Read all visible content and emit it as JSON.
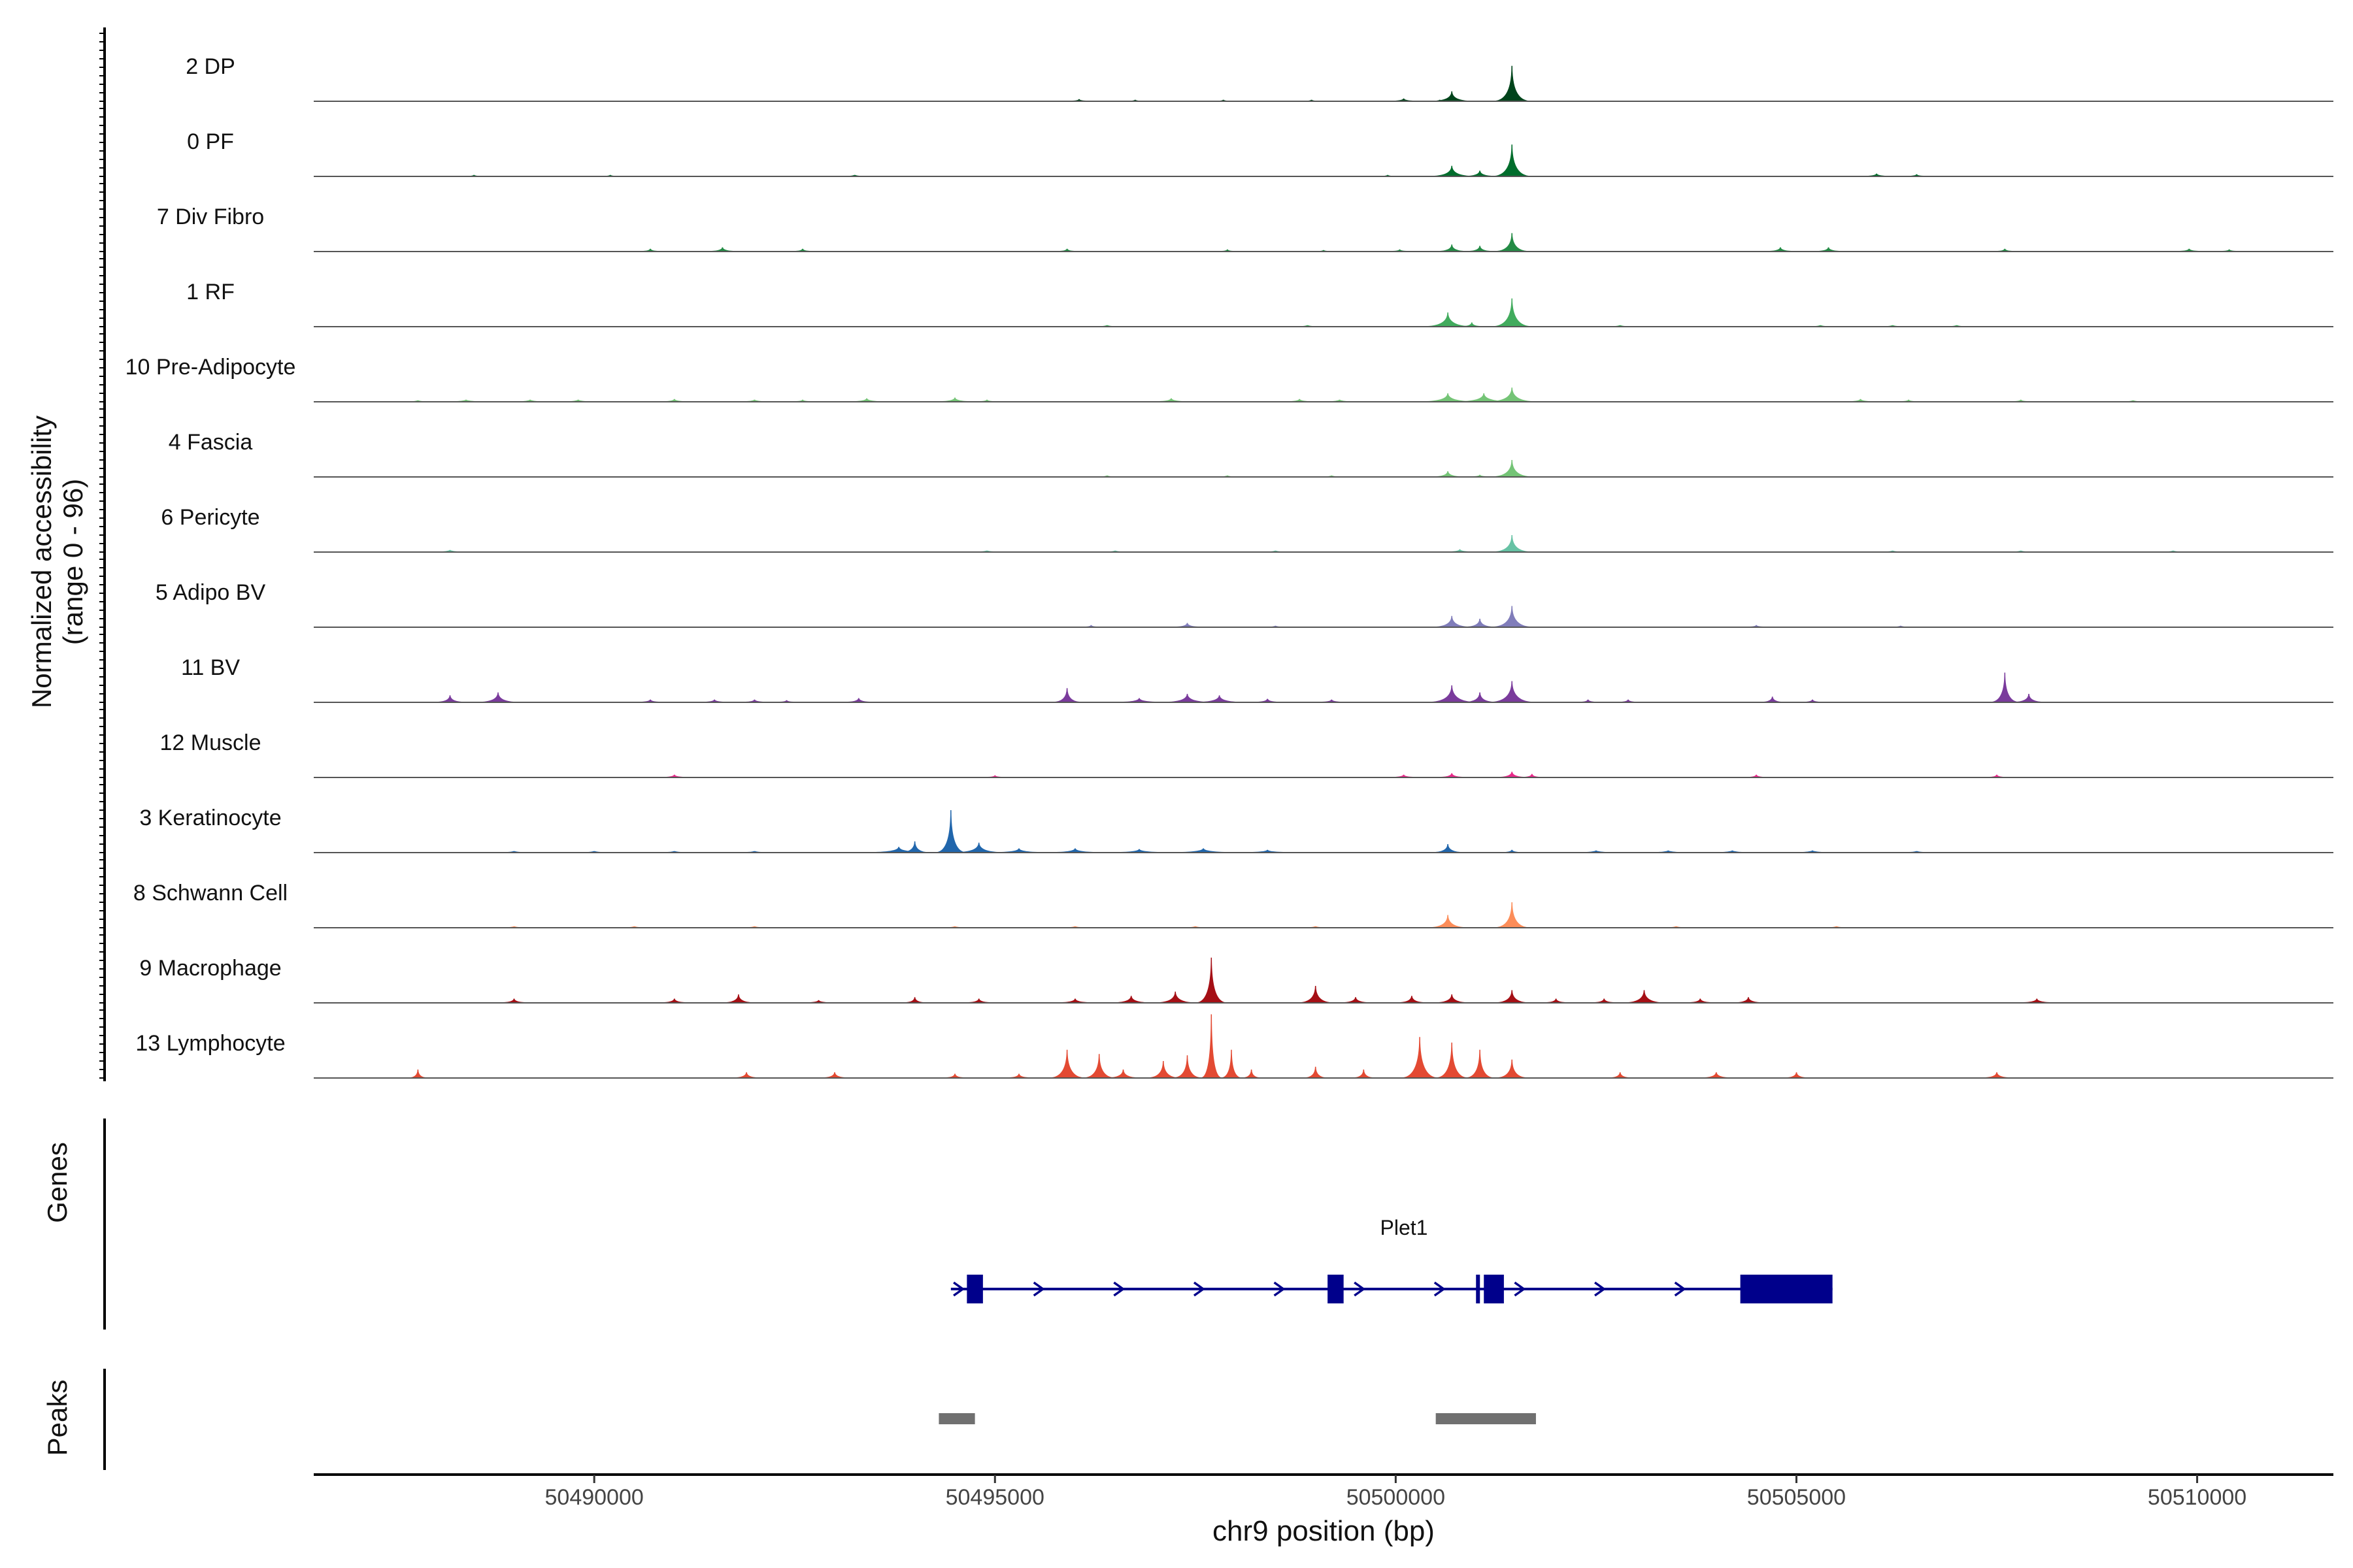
{
  "chart_data": {
    "type": "area",
    "title": "",
    "xlabel": "chr9 position (bp)",
    "ylabel": "Normalized accessibility",
    "ylabel_range": "(range 0 - 96)",
    "ylim": [
      0,
      96
    ],
    "xlim": [
      50486500,
      50511700
    ],
    "x_ticks": [
      50490000,
      50495000,
      50500000,
      50505000,
      50510000
    ],
    "x_tick_labels": [
      "50490000",
      "50495000",
      "50500000",
      "50505000",
      "50510000"
    ],
    "tracks": [
      {
        "name": "2 DP",
        "color": "#00441b",
        "peaks": [
          [
            50500100,
            4,
            200
          ],
          [
            50500700,
            14,
            250
          ],
          [
            50501450,
            50,
            230
          ],
          [
            50496050,
            3,
            150
          ],
          [
            50496750,
            2,
            100
          ],
          [
            50497850,
            2,
            100
          ],
          [
            50498950,
            2,
            100
          ],
          [
            50500550,
            2,
            100
          ]
        ]
      },
      {
        "name": "0 PF",
        "color": "#006d2c",
        "peaks": [
          [
            50493250,
            2,
            150
          ],
          [
            50500700,
            15,
            280
          ],
          [
            50501050,
            8,
            200
          ],
          [
            50501450,
            45,
            240
          ],
          [
            50488500,
            2,
            100
          ],
          [
            50490200,
            2,
            100
          ],
          [
            50499900,
            2,
            100
          ],
          [
            50506000,
            4,
            200
          ],
          [
            50506500,
            3,
            150
          ]
        ]
      },
      {
        "name": "7 Div Fibro",
        "color": "#238b45",
        "peaks": [
          [
            50490700,
            4,
            150
          ],
          [
            50491600,
            6,
            200
          ],
          [
            50492600,
            4,
            150
          ],
          [
            50495900,
            4,
            150
          ],
          [
            50497900,
            3,
            120
          ],
          [
            50499100,
            2,
            100
          ],
          [
            50500050,
            3,
            150
          ],
          [
            50500700,
            10,
            200
          ],
          [
            50501050,
            8,
            180
          ],
          [
            50501450,
            26,
            220
          ],
          [
            50504800,
            6,
            200
          ],
          [
            50505400,
            6,
            200
          ],
          [
            50507600,
            4,
            150
          ],
          [
            50509900,
            4,
            200
          ],
          [
            50510400,
            3,
            150
          ]
        ]
      },
      {
        "name": "1 RF",
        "color": "#41ab5d",
        "peaks": [
          [
            50496400,
            2,
            150
          ],
          [
            50498900,
            2,
            150
          ],
          [
            50500650,
            20,
            300
          ],
          [
            50501450,
            40,
            250
          ],
          [
            50500950,
            6,
            150
          ],
          [
            50502800,
            2,
            150
          ],
          [
            50505300,
            2,
            150
          ],
          [
            50506200,
            2,
            150
          ],
          [
            50507000,
            2,
            150
          ]
        ]
      },
      {
        "name": "10 Pre-Adipocyte",
        "color": "#74c476",
        "peaks": [
          [
            50487800,
            2,
            150
          ],
          [
            50488400,
            3,
            250
          ],
          [
            50489200,
            3,
            200
          ],
          [
            50489800,
            3,
            200
          ],
          [
            50491000,
            4,
            200
          ],
          [
            50492000,
            3,
            200
          ],
          [
            50492600,
            3,
            150
          ],
          [
            50493400,
            5,
            250
          ],
          [
            50494500,
            6,
            250
          ],
          [
            50494900,
            3,
            150
          ],
          [
            50497200,
            5,
            250
          ],
          [
            50498800,
            4,
            200
          ],
          [
            50499300,
            3,
            200
          ],
          [
            50500650,
            12,
            350
          ],
          [
            50501100,
            12,
            350
          ],
          [
            50501450,
            20,
            300
          ],
          [
            50505800,
            4,
            200
          ],
          [
            50506400,
            3,
            150
          ],
          [
            50507800,
            3,
            150
          ],
          [
            50509200,
            2,
            150
          ]
        ]
      },
      {
        "name": "4 Fascia",
        "color": "#74c476",
        "peaks": [
          [
            50500650,
            8,
            200
          ],
          [
            50501450,
            24,
            260
          ],
          [
            50496400,
            2,
            120
          ],
          [
            50497900,
            2,
            120
          ],
          [
            50499200,
            2,
            120
          ],
          [
            50501050,
            3,
            150
          ]
        ]
      },
      {
        "name": "6 Pericyte",
        "color": "#66c2a4",
        "peaks": [
          [
            50488200,
            3,
            200
          ],
          [
            50494900,
            2,
            200
          ],
          [
            50496500,
            2,
            150
          ],
          [
            50498500,
            2,
            150
          ],
          [
            50500800,
            4,
            200
          ],
          [
            50501450,
            24,
            250
          ],
          [
            50506200,
            2,
            150
          ],
          [
            50507800,
            2,
            150
          ],
          [
            50509700,
            2,
            150
          ]
        ]
      },
      {
        "name": "5 Adipo BV",
        "color": "#807dba",
        "peaks": [
          [
            50497400,
            6,
            200
          ],
          [
            50500700,
            16,
            250
          ],
          [
            50501050,
            12,
            200
          ],
          [
            50501450,
            30,
            260
          ],
          [
            50496200,
            3,
            120
          ],
          [
            50498500,
            2,
            120
          ],
          [
            50504500,
            3,
            150
          ],
          [
            50506300,
            2,
            120
          ]
        ]
      },
      {
        "name": "11 BV",
        "color": "#7a3b9c",
        "peaks": [
          [
            50488200,
            10,
            200
          ],
          [
            50488800,
            14,
            250
          ],
          [
            50490700,
            4,
            200
          ],
          [
            50491500,
            4,
            200
          ],
          [
            50492000,
            4,
            200
          ],
          [
            50492400,
            3,
            150
          ],
          [
            50493300,
            6,
            200
          ],
          [
            50495900,
            20,
            180
          ],
          [
            50496800,
            6,
            300
          ],
          [
            50497400,
            12,
            300
          ],
          [
            50497800,
            10,
            300
          ],
          [
            50498400,
            5,
            200
          ],
          [
            50499200,
            4,
            200
          ],
          [
            50500700,
            24,
            300
          ],
          [
            50501050,
            14,
            200
          ],
          [
            50501450,
            30,
            280
          ],
          [
            50502400,
            4,
            150
          ],
          [
            50502900,
            4,
            150
          ],
          [
            50504700,
            8,
            150
          ],
          [
            50505200,
            4,
            150
          ],
          [
            50507600,
            42,
            180
          ],
          [
            50507900,
            12,
            200
          ]
        ]
      },
      {
        "name": "12 Muscle",
        "color": "#e7298a",
        "peaks": [
          [
            50491000,
            4,
            200
          ],
          [
            50495000,
            3,
            150
          ],
          [
            50500100,
            4,
            200
          ],
          [
            50500700,
            6,
            200
          ],
          [
            50501450,
            8,
            200
          ],
          [
            50501700,
            5,
            150
          ],
          [
            50504500,
            4,
            150
          ],
          [
            50507500,
            4,
            150
          ]
        ]
      },
      {
        "name": "3 Keratinocyte",
        "color": "#2166ac",
        "peaks": [
          [
            50493800,
            8,
            400
          ],
          [
            50494000,
            16,
            180
          ],
          [
            50494450,
            60,
            190
          ],
          [
            50494800,
            14,
            300
          ],
          [
            50495300,
            6,
            350
          ],
          [
            50496000,
            6,
            350
          ],
          [
            50496800,
            5,
            350
          ],
          [
            50497600,
            6,
            400
          ],
          [
            50498400,
            4,
            300
          ],
          [
            50500650,
            12,
            200
          ],
          [
            50501450,
            4,
            150
          ],
          [
            50489000,
            2,
            200
          ],
          [
            50490000,
            2,
            200
          ],
          [
            50491000,
            2,
            200
          ],
          [
            50492000,
            2,
            200
          ],
          [
            50502500,
            3,
            250
          ],
          [
            50503400,
            3,
            250
          ],
          [
            50504200,
            3,
            250
          ],
          [
            50505200,
            3,
            250
          ],
          [
            50506500,
            2,
            200
          ]
        ]
      },
      {
        "name": "8 Schwann Cell",
        "color": "#fc8d59",
        "peaks": [
          [
            50500650,
            18,
            250
          ],
          [
            50501450,
            36,
            220
          ],
          [
            50489000,
            2,
            150
          ],
          [
            50490500,
            2,
            150
          ],
          [
            50492000,
            2,
            150
          ],
          [
            50494500,
            2,
            150
          ],
          [
            50496000,
            2,
            150
          ],
          [
            50497500,
            2,
            150
          ],
          [
            50499000,
            2,
            150
          ],
          [
            50503500,
            2,
            150
          ],
          [
            50505500,
            2,
            150
          ]
        ]
      },
      {
        "name": "9 Macrophage",
        "color": "#a50f15",
        "peaks": [
          [
            50489000,
            6,
            200
          ],
          [
            50491000,
            6,
            200
          ],
          [
            50491800,
            12,
            200
          ],
          [
            50492800,
            4,
            200
          ],
          [
            50494000,
            8,
            150
          ],
          [
            50494800,
            6,
            200
          ],
          [
            50496000,
            6,
            250
          ],
          [
            50496700,
            10,
            250
          ],
          [
            50497250,
            16,
            250
          ],
          [
            50497700,
            64,
            190
          ],
          [
            50499000,
            24,
            220
          ],
          [
            50499500,
            8,
            200
          ],
          [
            50500200,
            10,
            200
          ],
          [
            50500700,
            12,
            220
          ],
          [
            50501450,
            18,
            220
          ],
          [
            50502000,
            6,
            180
          ],
          [
            50502600,
            6,
            180
          ],
          [
            50503100,
            18,
            250
          ],
          [
            50503800,
            6,
            200
          ],
          [
            50504400,
            8,
            200
          ],
          [
            50508000,
            6,
            250
          ]
        ]
      },
      {
        "name": "13 Lymphocyte",
        "color": "#e34a33",
        "peaks": [
          [
            50487800,
            12,
            120
          ],
          [
            50491900,
            8,
            180
          ],
          [
            50493000,
            8,
            180
          ],
          [
            50494500,
            6,
            160
          ],
          [
            50495300,
            6,
            180
          ],
          [
            50495900,
            40,
            220
          ],
          [
            50496300,
            34,
            200
          ],
          [
            50496600,
            12,
            200
          ],
          [
            50497100,
            24,
            200
          ],
          [
            50497400,
            32,
            180
          ],
          [
            50497700,
            90,
            130
          ],
          [
            50497950,
            40,
            130
          ],
          [
            50498200,
            12,
            120
          ],
          [
            50499000,
            16,
            150
          ],
          [
            50499600,
            12,
            140
          ],
          [
            50500300,
            58,
            230
          ],
          [
            50500700,
            50,
            200
          ],
          [
            50501050,
            40,
            180
          ],
          [
            50501450,
            26,
            200
          ],
          [
            50502800,
            8,
            150
          ],
          [
            50504000,
            8,
            200
          ],
          [
            50505000,
            8,
            160
          ],
          [
            50507500,
            8,
            200
          ]
        ]
      }
    ],
    "gene": {
      "name": "Plet1",
      "start": 50494450,
      "end": 50505450,
      "strand": "+",
      "exons": [
        [
          50494650,
          50494850
        ],
        [
          50499150,
          50499350
        ],
        [
          50501100,
          50501350
        ],
        [
          50504300,
          50505450
        ]
      ],
      "marker": 50501100
    },
    "peak_regions": [
      [
        50494300,
        50494750
      ],
      [
        50500500,
        50501750
      ]
    ],
    "panel_labels": {
      "genes": "Genes",
      "peaks": "Peaks"
    },
    "colors": {
      "gene": "#00008b",
      "peak_region": "#707070",
      "baseline": "#555555"
    }
  }
}
